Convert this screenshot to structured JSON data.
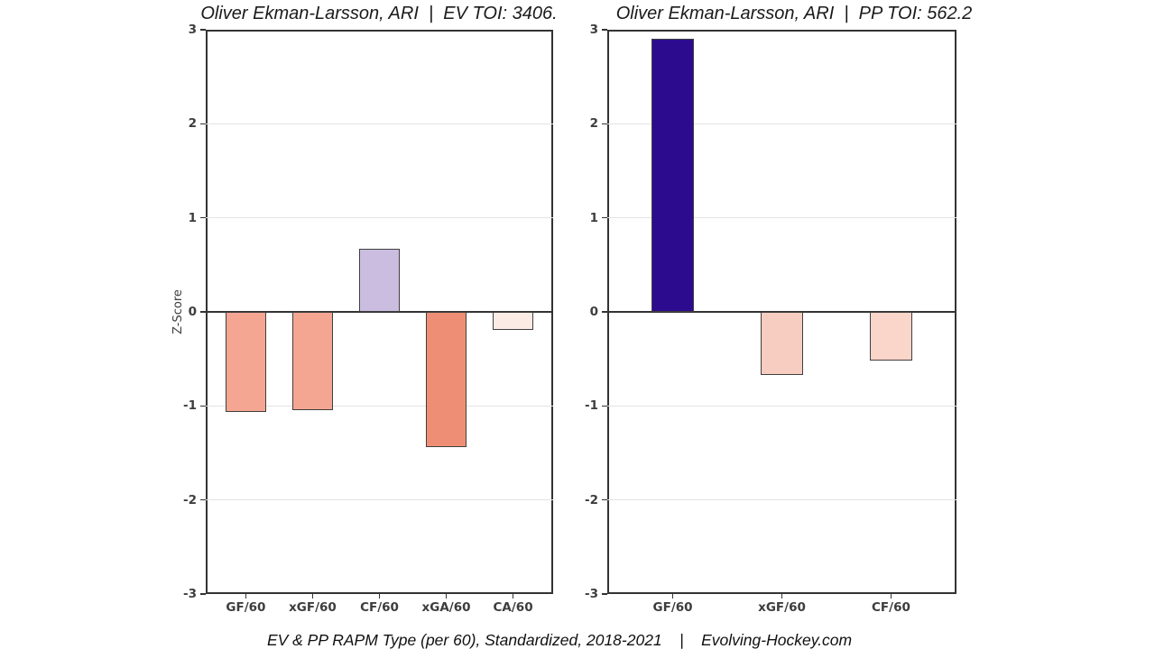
{
  "caption": "EV & PP RAPM Type (per 60), Standardized, 2018-2021    |    Evolving-Hockey.com",
  "chart_data": [
    {
      "type": "bar",
      "title": "Oliver Ekman-Larsson, ARI  |  EV TOI: 3406.",
      "ylabel": "Z-Score",
      "xlabel": "",
      "categories": [
        "GF/60",
        "xGF/60",
        "CF/60",
        "xGA/60",
        "CA/60"
      ],
      "values": [
        -1.06,
        -1.04,
        0.67,
        -1.44,
        -0.19
      ],
      "bar_colors": [
        "#f4a692",
        "#f4a692",
        "#cbbde0",
        "#ee8f75",
        "#fcebe5"
      ],
      "ylim": [
        -3,
        3
      ],
      "yticks": [
        3,
        2,
        1,
        0,
        -1,
        -2,
        -3
      ],
      "grid": true,
      "legend": "none"
    },
    {
      "type": "bar",
      "title": "Oliver Ekman-Larsson, ARI  |  PP TOI: 562.2",
      "ylabel": "",
      "xlabel": "",
      "categories": [
        "GF/60",
        "xGF/60",
        "CF/60"
      ],
      "values": [
        2.9,
        -0.67,
        -0.52
      ],
      "bar_colors": [
        "#2d0b8f",
        "#f8cdc1",
        "#fad5ca"
      ],
      "ylim": [
        -3,
        3
      ],
      "yticks": [
        3,
        2,
        1,
        0,
        -1,
        -2,
        -3
      ],
      "grid": true,
      "legend": "none"
    }
  ],
  "style": {
    "background": "#ffffff",
    "axis_color": "#333333",
    "grid_color": "#e3e3e3",
    "zero_line_color": "#333333",
    "bar_border_color": "#3f3f3f",
    "tick_label_color": "#3d3d3d",
    "title_color": "#1a1a1a",
    "caption_color": "#111111"
  }
}
